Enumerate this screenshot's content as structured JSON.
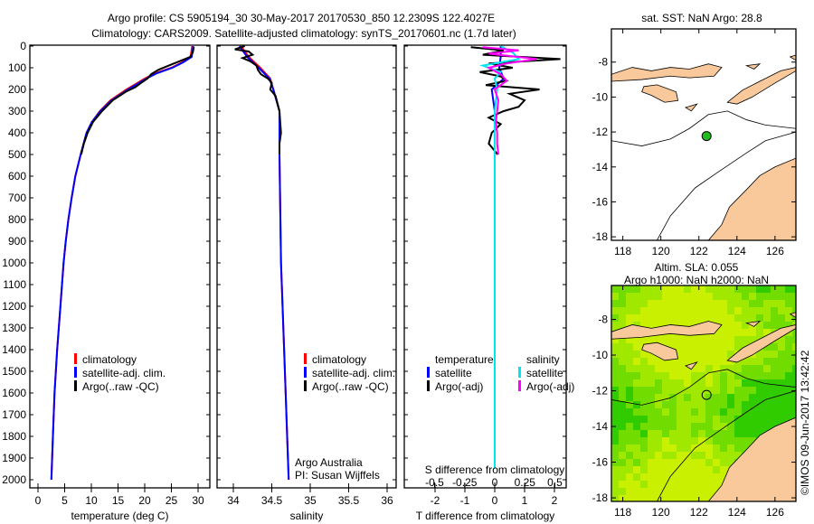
{
  "title_line1": "Argo profile: CS 5905194_30 30-May-2017 20170530_850 12.2309S 122.4027E",
  "title_line2": "Climatology: CARS2009. Satellite-adjusted climatology: synTS_20170601.nc (1.7d later)",
  "credit": "©IMOS 09-Jun-2017 13:42:42",
  "colors": {
    "climatology": "#ff0000",
    "satellite": "#0000ff",
    "argo": "#000000",
    "sal_satellite": "#00e5ee",
    "sal_argo": "#ff00ff",
    "land": "#f9c89b"
  },
  "chart_data": [
    {
      "type": "line",
      "id": "temperature",
      "xlabel": "temperature (deg C)",
      "ylabel": "",
      "xlim": [
        -1.5,
        32.2
      ],
      "ylim": [
        2000,
        0
      ],
      "xticks": [
        "0",
        "5",
        "10",
        "15",
        "20",
        "25",
        "30"
      ],
      "xtick_values": [
        0,
        5,
        10,
        15,
        20,
        25,
        30
      ],
      "yticks": [
        "0",
        "100",
        "200",
        "300",
        "400",
        "500",
        "600",
        "700",
        "800",
        "900",
        "1000",
        "1100",
        "1200",
        "1300",
        "1400",
        "1500",
        "1600",
        "1700",
        "1800",
        "1900",
        "2000"
      ],
      "legend": [
        "climatology",
        "satellite-adj. clim.",
        "Argo(..raw -QC)"
      ],
      "series": [
        {
          "name": "climatology",
          "color": "#ff0000",
          "depth": [
            0,
            50,
            75,
            100,
            125,
            150,
            175,
            200,
            250,
            300,
            350,
            400,
            500,
            600,
            700,
            800,
            900,
            1000,
            1200,
            1400,
            1600,
            1800,
            2000
          ],
          "values": [
            28.9,
            28.6,
            27,
            25,
            22,
            20,
            18.3,
            16.6,
            13.6,
            11.6,
            10.1,
            9.1,
            8,
            7,
            6.3,
            5.7,
            5.2,
            4.8,
            4.2,
            3.6,
            3.1,
            2.8,
            2.5
          ]
        },
        {
          "name": "satellite-adj. clim.",
          "color": "#0000ff",
          "depth": [
            0,
            50,
            75,
            100,
            125,
            150,
            175,
            200,
            250,
            300,
            350,
            400,
            500,
            600,
            700,
            800,
            900,
            1000,
            1200,
            1400,
            1600,
            1800,
            2000
          ],
          "values": [
            29.1,
            28.8,
            27.2,
            25.2,
            22.3,
            20.3,
            18.6,
            16.9,
            13.8,
            11.7,
            10.1,
            9.1,
            8,
            7,
            6.3,
            5.7,
            5.2,
            4.8,
            4.2,
            3.6,
            3.1,
            2.8,
            2.5
          ]
        },
        {
          "name": "Argo(..raw -QC)",
          "color": "#000000",
          "depth": [
            5,
            30,
            50,
            70,
            90,
            110,
            130,
            150,
            170,
            190,
            210,
            250,
            300,
            350,
            400,
            450,
            500
          ],
          "values": [
            29.2,
            29,
            28.5,
            26.5,
            24.5,
            22.5,
            21.2,
            20.5,
            19.3,
            18.2,
            16.5,
            14,
            12,
            10.3,
            9.3,
            8.6,
            8.1
          ]
        }
      ]
    },
    {
      "type": "line",
      "id": "salinity",
      "xlabel": "salinity",
      "xlim": [
        33.8,
        36.1
      ],
      "ylim": [
        2000,
        0
      ],
      "xticks": [
        "34",
        "34.5",
        "35",
        "35.5",
        "36"
      ],
      "xtick_values": [
        34,
        34.5,
        35,
        35.5,
        36
      ],
      "legend": [
        "climatology",
        "satellite-adj. clim.",
        "Argo(..raw -QC)"
      ],
      "annotation": [
        "Argo Australia",
        "PI: Susan Wijffels"
      ],
      "series": [
        {
          "name": "climatology",
          "color": "#ff0000",
          "depth": [
            0,
            50,
            100,
            150,
            200,
            250,
            300,
            500,
            1000,
            1500,
            1800,
            2000
          ],
          "values": [
            34.1,
            34.2,
            34.35,
            34.48,
            34.52,
            34.56,
            34.6,
            34.6,
            34.62,
            34.67,
            34.7,
            34.72
          ]
        },
        {
          "name": "satellite-adj. clim.",
          "color": "#0000ff",
          "depth": [
            0,
            50,
            100,
            150,
            200,
            250,
            300,
            500,
            1000,
            1500,
            1800,
            2000
          ],
          "values": [
            34.08,
            34.18,
            34.33,
            34.47,
            34.52,
            34.56,
            34.6,
            34.6,
            34.62,
            34.67,
            34.7,
            34.72
          ]
        },
        {
          "name": "Argo(..raw -QC)",
          "color": "#000000",
          "depth": [
            0,
            15,
            25,
            40,
            55,
            70,
            90,
            110,
            130,
            150,
            170,
            200,
            230,
            260,
            300,
            350,
            400,
            450,
            500
          ],
          "values": [
            34.15,
            34.02,
            34.2,
            34.25,
            34.12,
            34.22,
            34.3,
            34.32,
            34.36,
            34.45,
            34.5,
            34.48,
            34.55,
            34.57,
            34.6,
            34.61,
            34.62,
            34.6,
            34.6
          ]
        }
      ]
    },
    {
      "type": "line",
      "id": "difference",
      "xlabel": "T difference from climatology",
      "x2label": "S difference from climatology",
      "xlim": [
        -2.8,
        2.4
      ],
      "ylim": [
        2000,
        0
      ],
      "xticks": [
        "-2",
        "-1",
        "0",
        "1",
        "2"
      ],
      "xtick_values": [
        -2,
        -1,
        0,
        1,
        2
      ],
      "x2ticks": [
        "-0.5",
        "-0.25",
        "0",
        "0.25",
        "0.5"
      ],
      "x2tick_values": [
        -0.5,
        -0.25,
        0,
        0.25,
        0.5
      ],
      "legend_temperature": {
        "heading": "temperature",
        "items": [
          "satellite",
          "Argo(-adj)"
        ]
      },
      "legend_salinity": {
        "heading": "salinity",
        "items": [
          "satellite",
          "Argo(-adj)"
        ]
      },
      "series": [
        {
          "name": "temperature satellite",
          "axis": "T",
          "color": "#0000ff",
          "depth": [
            0,
            50,
            100,
            150,
            200,
            300,
            500,
            1000,
            1500,
            1950
          ],
          "values": [
            0.2,
            0.2,
            0.15,
            0.3,
            -0.1,
            0,
            0,
            0,
            0,
            0
          ]
        },
        {
          "name": "temperature Argo(-adj)",
          "axis": "T",
          "color": "#000000",
          "depth": [
            5,
            20,
            40,
            60,
            80,
            100,
            120,
            140,
            160,
            180,
            200,
            220,
            250,
            280,
            300,
            330,
            360,
            400,
            450,
            500
          ],
          "values": [
            -0.8,
            0.3,
            -0.4,
            2.2,
            -0.2,
            0.6,
            -0.5,
            0.2,
            0.4,
            -0.3,
            1.5,
            0.5,
            1.0,
            0.8,
            0.3,
            -0.2,
            0.2,
            -0.1,
            -0.2,
            0.1
          ]
        },
        {
          "name": "salinity satellite",
          "axis": "S",
          "color": "#00e5ee",
          "depth": [
            0,
            30,
            60,
            90,
            120,
            150,
            200,
            300,
            500,
            1000,
            1500,
            1950
          ],
          "values": [
            0.05,
            0.15,
            0.2,
            -0.1,
            0.05,
            0,
            0.02,
            0,
            0,
            0,
            0,
            0
          ]
        },
        {
          "name": "salinity Argo(-adj)",
          "axis": "S",
          "color": "#ff00ff",
          "depth": [
            5,
            20,
            35,
            60,
            80,
            100,
            130,
            160,
            200,
            250,
            300,
            350,
            400,
            450,
            500
          ],
          "values": [
            -0.1,
            0.2,
            -0.05,
            0.35,
            0.1,
            -0.05,
            0.05,
            0.1,
            0,
            0.03,
            0.02,
            0.01,
            0.02,
            0.02,
            0.03
          ]
        }
      ]
    },
    {
      "type": "map",
      "id": "sst-map",
      "title": "sat. SST: NaN Argo: 28.8",
      "xticks": [
        "118",
        "120",
        "122",
        "124",
        "126"
      ],
      "xtick_values": [
        118,
        120,
        122,
        124,
        126
      ],
      "yticks": [
        "-8",
        "-10",
        "-12",
        "-14",
        "-16",
        "-18"
      ],
      "ytick_values": [
        -8,
        -10,
        -12,
        -14,
        -16,
        -18
      ],
      "xlim": [
        117.4,
        127.1
      ],
      "ylim": [
        -18.2,
        -6.1
      ],
      "argo_position": [
        122.4027,
        -12.2309
      ]
    },
    {
      "type": "map",
      "id": "sla-map",
      "title_line1": "Altim. SLA: 0.055",
      "title_line2": "Argo h1000: NaN h2000: NaN",
      "xticks": [
        "118",
        "120",
        "122",
        "124",
        "126"
      ],
      "xtick_values": [
        118,
        120,
        122,
        124,
        126
      ],
      "yticks": [
        "-8",
        "-10",
        "-12",
        "-14",
        "-16",
        "-18"
      ],
      "ytick_values": [
        -8,
        -10,
        -12,
        -14,
        -16,
        -18
      ],
      "xlim": [
        117.4,
        127.1
      ],
      "ylim": [
        -18.2,
        -6.1
      ],
      "argo_position": [
        122.4027,
        -12.2309
      ]
    }
  ]
}
